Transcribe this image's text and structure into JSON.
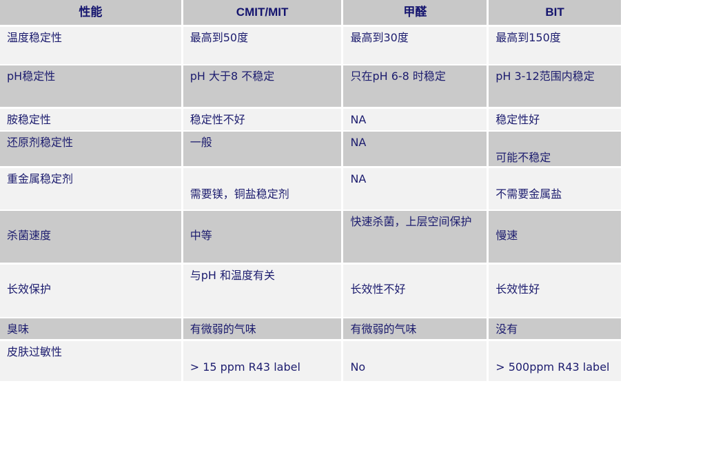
{
  "headers": [
    "性能",
    "CMIT/MIT",
    "甲醛",
    "BIT"
  ],
  "rows": [
    {
      "cells": [
        "温度稳定性",
        "最高到50度",
        "最高到30度",
        "最高到150度"
      ]
    },
    {
      "cells": [
        " pH稳定性",
        " pH 大于8 不稳定",
        "只在pH 6-8 时稳定",
        "pH 3-12范围内稳定"
      ]
    },
    {
      "cells": [
        "胺稳定性",
        "稳定性不好",
        "NA",
        "稳定性好"
      ]
    },
    {
      "cells": [
        "还原剂稳定性",
        "一般",
        "NA",
        "可能不稳定"
      ]
    },
    {
      "cells": [
        "重金属稳定剂",
        "需要镁，铜盐稳定剂",
        "NA",
        "不需要金属盐"
      ]
    },
    {
      "cells": [
        "杀菌速度",
        "中等",
        "快速杀菌，上层空间保护",
        "慢速"
      ]
    },
    {
      "cells": [
        "长效保护",
        "与pH 和温度有关",
        "长效性不好",
        "长效性好"
      ]
    },
    {
      "cells": [
        " 臭味",
        "有微弱的气味",
        "有微弱的气味",
        "没有"
      ]
    },
    {
      "cells": [
        "皮肤过敏性",
        "> 15 ppm R43 label",
        "No",
        "> 500ppm R43 label"
      ]
    }
  ],
  "colors": {
    "text": "#1c1c6e",
    "header_bg": "#c8c8c8",
    "row_gray": "#cacaca",
    "row_light": "#f2f2f2"
  }
}
